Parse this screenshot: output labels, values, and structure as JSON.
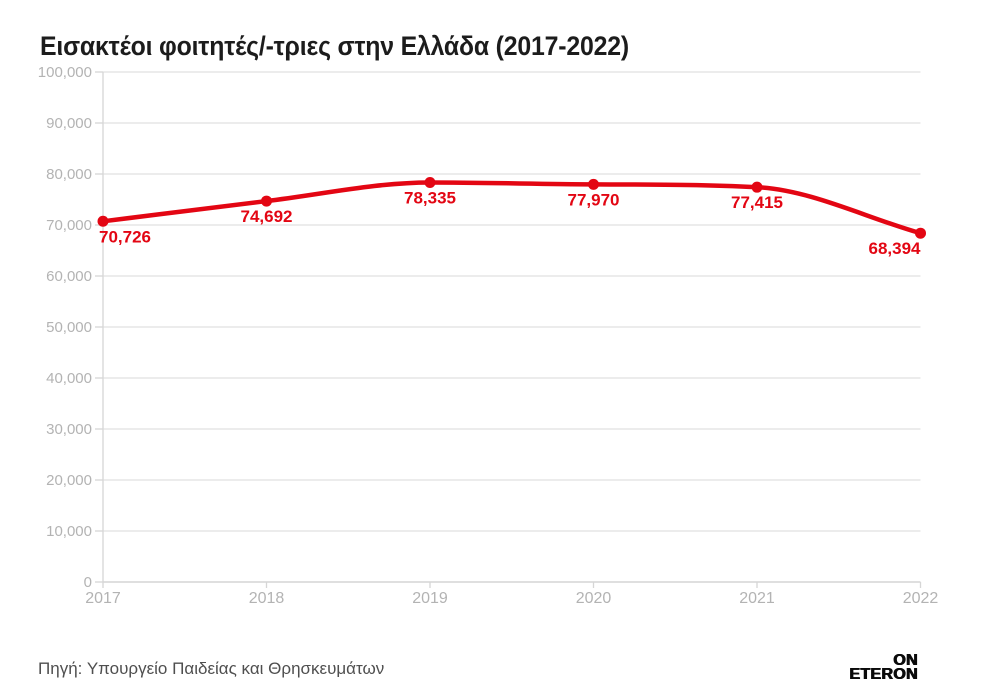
{
  "header": {
    "title": "Εισακτέοι φοιτητές/-τριες στην Ελλάδα (2017-2022)"
  },
  "footer": {
    "source": "Πηγή: Υπουργείο Παιδείας και Θρησκευμάτων",
    "logo_top": "ON",
    "logo_bottom": "ETERON"
  },
  "colors": {
    "line": "#e30613",
    "point": "#e30613",
    "value_label": "#e30613",
    "axis_text": "#b3b3b3",
    "grid": "#e6e6e6",
    "axis_line": "#d6d6d6",
    "baseline": "#cccccc",
    "title": "#1c1c1c",
    "source": "#4f4f4f",
    "logo": "#0a0a0a",
    "background": "#ffffff"
  },
  "chart_data": {
    "type": "line",
    "title": "Εισακτέοι φοιτητές/-τριες στην Ελλάδα (2017-2022)",
    "categories": [
      "2017",
      "2018",
      "2019",
      "2020",
      "2021",
      "2022"
    ],
    "values": [
      70726,
      74692,
      78335,
      77970,
      77415,
      68394
    ],
    "value_labels": [
      "70,726",
      "74,692",
      "78,335",
      "77,970",
      "77,415",
      "68,394"
    ],
    "xlabel": "",
    "ylabel": "",
    "ylim": [
      0,
      100000
    ],
    "y_tick_step": 10000,
    "y_ticks": [
      0,
      10000,
      20000,
      30000,
      40000,
      50000,
      60000,
      70000,
      80000,
      90000,
      100000
    ],
    "y_tick_labels": [
      "0",
      "10,000",
      "20,000",
      "30,000",
      "40,000",
      "50,000",
      "60,000",
      "70,000",
      "80,000",
      "90,000",
      "100,000"
    ],
    "grid": true,
    "legend": "none",
    "curve": "monotone",
    "line_color": "#e30613"
  }
}
